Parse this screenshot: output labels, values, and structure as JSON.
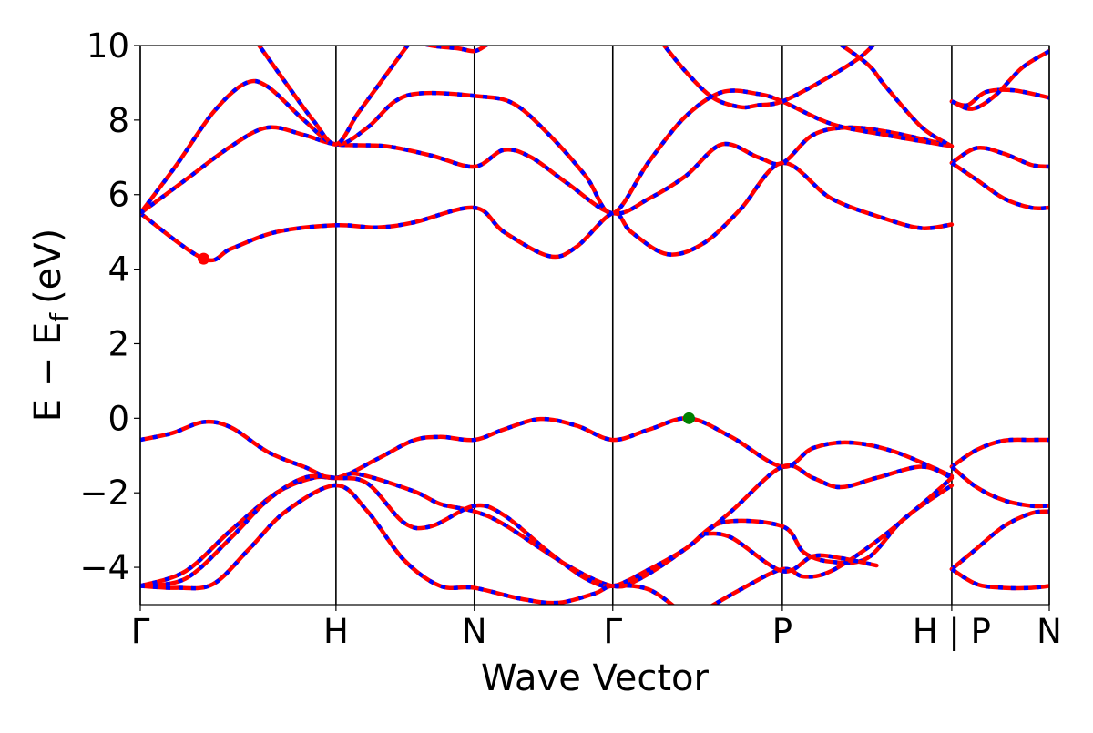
{
  "chart_data": {
    "type": "line",
    "xlabel": "Wave Vector",
    "ylabel": "E − E",
    "ylabel_subscript": "f",
    "ylabel_unit": "(eV)",
    "ylim": [
      -5,
      10
    ],
    "yticks": [
      -4,
      -2,
      0,
      2,
      4,
      6,
      8,
      10
    ],
    "xlim": [
      0,
      1
    ],
    "high_symmetry_points": [
      {
        "label": "Γ",
        "x": 0.0
      },
      {
        "label": "H",
        "x": 0.2153
      },
      {
        "label": "N",
        "x": 0.3675
      },
      {
        "label": "Γ",
        "x": 0.5198
      },
      {
        "label": "P",
        "x": 0.7063
      },
      {
        "label": "H | P",
        "x": 0.8927
      },
      {
        "label": "N",
        "x": 1.0
      }
    ],
    "grid": false,
    "colors": {
      "line_solid": "#ff0000",
      "line_dashed": "#0000ff",
      "cbm_marker": "#ff0000",
      "vbm_marker": "#008000"
    },
    "markers": [
      {
        "name": "CBM",
        "x": 0.0697,
        "y": 4.28,
        "color": "#ff0000"
      },
      {
        "name": "VBM",
        "x": 0.6036,
        "y": 0.0,
        "color": "#008000"
      }
    ],
    "bands": [
      [
        [
          0.0,
          5.5
        ],
        [
          0.0697,
          4.28
        ],
        [
          0.1,
          4.55
        ],
        [
          0.15,
          5.0
        ],
        [
          0.2153,
          5.18
        ],
        [
          0.26,
          5.12
        ],
        [
          0.3,
          5.25
        ],
        [
          0.3675,
          5.65
        ],
        [
          0.4,
          5.0
        ],
        [
          0.45,
          4.35
        ],
        [
          0.48,
          4.6
        ],
        [
          0.5198,
          5.5
        ],
        [
          0.54,
          5.0
        ],
        [
          0.58,
          4.4
        ],
        [
          0.62,
          4.7
        ],
        [
          0.66,
          5.6
        ],
        [
          0.7063,
          6.85
        ],
        [
          0.76,
          5.9
        ],
        [
          0.82,
          5.35
        ],
        [
          0.86,
          5.1
        ],
        [
          0.8927,
          5.2
        ]
      ],
      [
        [
          0.0,
          5.5
        ],
        [
          0.05,
          6.4
        ],
        [
          0.1,
          7.3
        ],
        [
          0.14,
          7.8
        ],
        [
          0.18,
          7.6
        ],
        [
          0.2153,
          7.35
        ],
        [
          0.27,
          7.3
        ],
        [
          0.32,
          7.05
        ],
        [
          0.3675,
          6.75
        ],
        [
          0.4,
          7.2
        ],
        [
          0.43,
          7.0
        ],
        [
          0.47,
          6.3
        ],
        [
          0.5198,
          5.5
        ],
        [
          0.56,
          5.9
        ],
        [
          0.6,
          6.5
        ],
        [
          0.64,
          7.35
        ],
        [
          0.68,
          7.0
        ],
        [
          0.7063,
          6.85
        ],
        [
          0.74,
          7.6
        ],
        [
          0.78,
          7.8
        ],
        [
          0.83,
          7.65
        ],
        [
          0.8927,
          7.3
        ]
      ],
      [
        [
          0.0,
          5.5
        ],
        [
          0.04,
          6.8
        ],
        [
          0.08,
          8.2
        ],
        [
          0.115,
          8.98
        ],
        [
          0.14,
          8.9
        ],
        [
          0.18,
          8.0
        ],
        [
          0.2153,
          7.35
        ],
        [
          0.25,
          7.8
        ],
        [
          0.28,
          8.5
        ],
        [
          0.31,
          8.72
        ],
        [
          0.3675,
          8.65
        ],
        [
          0.41,
          8.45
        ],
        [
          0.45,
          7.6
        ],
        [
          0.49,
          6.5
        ],
        [
          0.5198,
          5.5
        ],
        [
          0.56,
          6.9
        ],
        [
          0.6,
          8.1
        ],
        [
          0.64,
          8.75
        ],
        [
          0.68,
          8.7
        ],
        [
          0.7063,
          8.5
        ],
        [
          0.76,
          7.9
        ],
        [
          0.82,
          7.6
        ],
        [
          0.8927,
          7.3
        ]
      ],
      [
        [
          0.125,
          10.2
        ],
        [
          0.16,
          9.0
        ],
        [
          0.19,
          8.0
        ],
        [
          0.2153,
          7.35
        ],
        [
          0.24,
          8.2
        ],
        [
          0.27,
          9.2
        ],
        [
          0.3,
          10.2
        ]
      ],
      [
        [
          0.285,
          10.2
        ],
        [
          0.32,
          10.0
        ],
        [
          0.35,
          9.92
        ],
        [
          0.3675,
          9.85
        ],
        [
          0.38,
          10.0
        ],
        [
          0.39,
          10.2
        ]
      ],
      [
        [
          0.57,
          10.2
        ],
        [
          0.6,
          9.3
        ],
        [
          0.63,
          8.6
        ],
        [
          0.66,
          8.35
        ],
        [
          0.68,
          8.4
        ],
        [
          0.7063,
          8.5
        ],
        [
          0.75,
          9.05
        ],
        [
          0.79,
          9.65
        ],
        [
          0.81,
          10.1
        ]
      ],
      [
        [
          0.76,
          10.2
        ],
        [
          0.8,
          9.5
        ],
        [
          0.82,
          8.9
        ],
        [
          0.86,
          7.8
        ],
        [
          0.8927,
          7.3
        ]
      ],
      [
        [
          0.0,
          -0.58
        ],
        [
          0.035,
          -0.4
        ],
        [
          0.07,
          -0.1
        ],
        [
          0.1,
          -0.25
        ],
        [
          0.14,
          -0.9
        ],
        [
          0.18,
          -1.3
        ],
        [
          0.2153,
          -1.6
        ],
        [
          0.26,
          -1.1
        ],
        [
          0.3,
          -0.6
        ],
        [
          0.33,
          -0.5
        ],
        [
          0.3675,
          -0.58
        ],
        [
          0.4,
          -0.3
        ],
        [
          0.44,
          -0.02
        ],
        [
          0.48,
          -0.2
        ],
        [
          0.5198,
          -0.58
        ],
        [
          0.56,
          -0.3
        ],
        [
          0.6036,
          0.0
        ],
        [
          0.65,
          -0.5
        ],
        [
          0.7063,
          -1.3
        ],
        [
          0.74,
          -0.8
        ],
        [
          0.78,
          -0.65
        ],
        [
          0.83,
          -0.9
        ],
        [
          0.8927,
          -1.55
        ]
      ],
      [
        [
          0.0,
          -4.5
        ],
        [
          0.05,
          -4.1
        ],
        [
          0.1,
          -3.0
        ],
        [
          0.15,
          -2.0
        ],
        [
          0.19,
          -1.6
        ],
        [
          0.2153,
          -1.6
        ],
        [
          0.24,
          -1.5
        ],
        [
          0.3,
          -1.95
        ],
        [
          0.33,
          -2.3
        ],
        [
          0.3675,
          -2.5
        ],
        [
          0.4,
          -2.85
        ],
        [
          0.47,
          -3.95
        ],
        [
          0.5198,
          -4.5
        ],
        [
          0.55,
          -4.3
        ],
        [
          0.6,
          -3.5
        ],
        [
          0.65,
          -2.5
        ],
        [
          0.7063,
          -1.3
        ],
        [
          0.74,
          -1.6
        ],
        [
          0.77,
          -1.85
        ],
        [
          0.81,
          -1.6
        ],
        [
          0.86,
          -1.3
        ],
        [
          0.8927,
          -1.6
        ]
      ],
      [
        [
          0.0,
          -4.5
        ],
        [
          0.05,
          -4.3
        ],
        [
          0.1,
          -3.2
        ],
        [
          0.14,
          -2.2
        ],
        [
          0.18,
          -1.6
        ],
        [
          0.2153,
          -1.6
        ],
        [
          0.25,
          -1.75
        ],
        [
          0.29,
          -2.8
        ],
        [
          0.32,
          -2.9
        ],
        [
          0.3675,
          -2.35
        ],
        [
          0.4,
          -2.6
        ],
        [
          0.45,
          -3.6
        ],
        [
          0.49,
          -4.3
        ],
        [
          0.5198,
          -4.5
        ],
        [
          0.56,
          -4.05
        ],
        [
          0.6,
          -3.5
        ],
        [
          0.64,
          -2.8
        ],
        [
          0.7063,
          -2.9
        ],
        [
          0.73,
          -3.6
        ],
        [
          0.76,
          -3.85
        ],
        [
          0.8,
          -3.75
        ],
        [
          0.84,
          -2.7
        ],
        [
          0.8927,
          -1.8
        ]
      ],
      [
        [
          0.0,
          -4.5
        ],
        [
          0.04,
          -4.55
        ],
        [
          0.08,
          -4.45
        ],
        [
          0.12,
          -3.5
        ],
        [
          0.16,
          -2.5
        ],
        [
          0.2153,
          -1.8
        ],
        [
          0.25,
          -2.5
        ],
        [
          0.29,
          -3.8
        ],
        [
          0.33,
          -4.5
        ],
        [
          0.3675,
          -4.55
        ],
        [
          0.42,
          -4.85
        ],
        [
          0.46,
          -4.95
        ],
        [
          0.5,
          -4.7
        ],
        [
          0.5198,
          -4.5
        ],
        [
          0.56,
          -4.6
        ],
        [
          0.6,
          -5.3
        ]
      ],
      [
        [
          0.61,
          -5.3
        ],
        [
          0.66,
          -4.6
        ],
        [
          0.7063,
          -4.05
        ],
        [
          0.73,
          -4.25
        ],
        [
          0.76,
          -4.1
        ],
        [
          0.81,
          -3.3
        ],
        [
          0.86,
          -2.3
        ],
        [
          0.8927,
          -1.6
        ]
      ],
      [
        [
          0.62,
          -3.1
        ],
        [
          0.65,
          -3.2
        ],
        [
          0.7063,
          -4.1
        ],
        [
          0.74,
          -3.7
        ],
        [
          0.77,
          -3.75
        ],
        [
          0.81,
          -3.95
        ]
      ],
      [
        [
          0.8927,
          8.5
        ],
        [
          0.91,
          8.4
        ],
        [
          0.93,
          8.75
        ],
        [
          0.96,
          8.8
        ],
        [
          1.0,
          8.6
        ]
      ],
      [
        [
          0.8927,
          8.5
        ],
        [
          0.915,
          8.3
        ],
        [
          0.94,
          8.65
        ],
        [
          0.97,
          9.4
        ],
        [
          1.0,
          9.85
        ]
      ],
      [
        [
          0.8927,
          6.85
        ],
        [
          0.92,
          7.25
        ],
        [
          0.95,
          7.1
        ],
        [
          0.98,
          6.8
        ],
        [
          1.0,
          6.75
        ]
      ],
      [
        [
          0.8927,
          6.85
        ],
        [
          0.92,
          6.4
        ],
        [
          0.95,
          5.9
        ],
        [
          0.98,
          5.65
        ],
        [
          1.0,
          5.65
        ]
      ],
      [
        [
          0.8927,
          -1.3
        ],
        [
          0.92,
          -0.85
        ],
        [
          0.95,
          -0.6
        ],
        [
          0.98,
          -0.58
        ],
        [
          1.0,
          -0.58
        ]
      ],
      [
        [
          0.8927,
          -1.3
        ],
        [
          0.92,
          -1.85
        ],
        [
          0.95,
          -2.2
        ],
        [
          0.98,
          -2.35
        ],
        [
          1.0,
          -2.35
        ]
      ],
      [
        [
          0.8927,
          -4.05
        ],
        [
          0.92,
          -3.5
        ],
        [
          0.95,
          -2.9
        ],
        [
          0.98,
          -2.55
        ],
        [
          1.0,
          -2.5
        ]
      ],
      [
        [
          0.8927,
          -4.05
        ],
        [
          0.92,
          -4.45
        ],
        [
          0.95,
          -4.55
        ],
        [
          0.98,
          -4.55
        ],
        [
          1.0,
          -4.5
        ]
      ]
    ]
  }
}
